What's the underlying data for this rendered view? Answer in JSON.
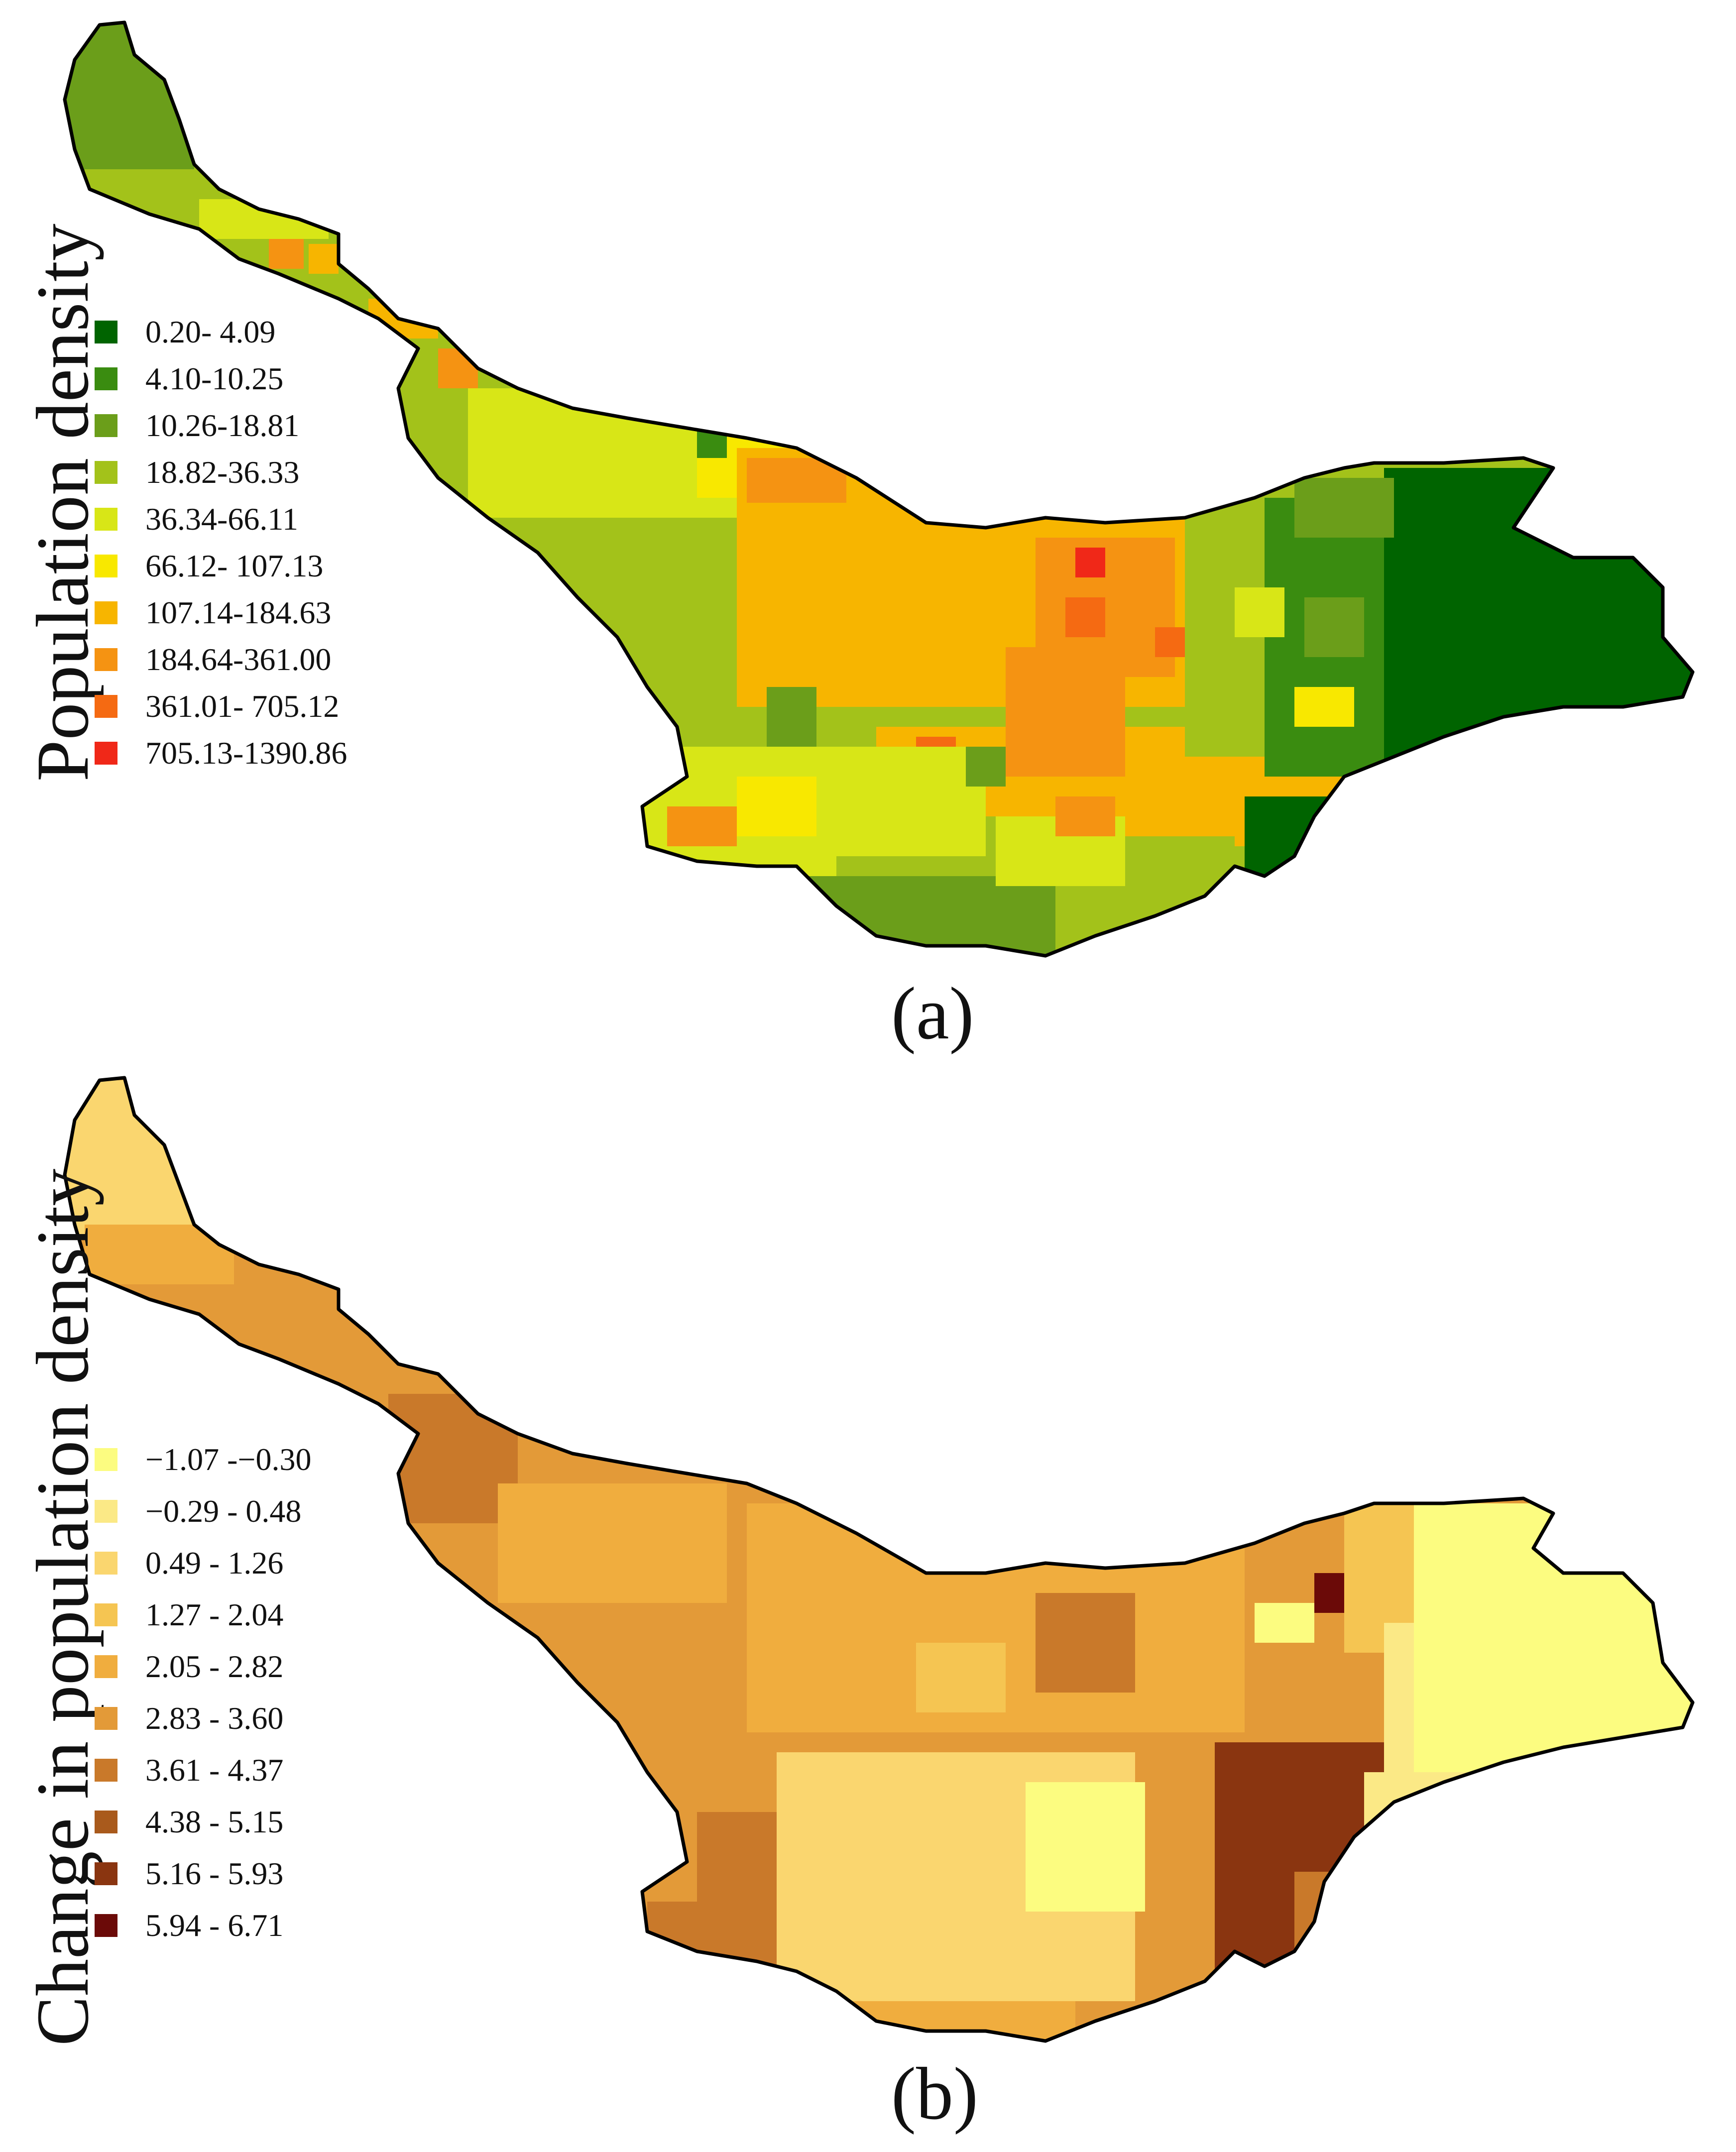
{
  "panels": [
    {
      "id": "a",
      "caption": "(a)",
      "legend_title": "Population density",
      "legend": [
        {
          "label": "0.20- 4.09",
          "color": "#006400"
        },
        {
          "label": "4.10-10.25",
          "color": "#3a8c10"
        },
        {
          "label": "10.26-18.81",
          "color": "#6b9e1a"
        },
        {
          "label": "18.82-36.33",
          "color": "#a3c21a"
        },
        {
          "label": "36.34-66.11",
          "color": "#d8e617"
        },
        {
          "label": "66.12- 107.13",
          "color": "#f8e800"
        },
        {
          "label": "107.14-184.63",
          "color": "#f7b500"
        },
        {
          "label": "184.64-361.00",
          "color": "#f59312"
        },
        {
          "label": "361.01- 705.12",
          "color": "#f56a12"
        },
        {
          "label": "705.13-1390.86",
          "color": "#f02818"
        }
      ]
    },
    {
      "id": "b",
      "caption": "(b)",
      "legend_title": "Change in population density",
      "legend": [
        {
          "label": "−1.07 -−0.30",
          "color": "#fcfc80"
        },
        {
          "label": "−0.29 - 0.48",
          "color": "#fbe986"
        },
        {
          "label": "0.49 - 1.26",
          "color": "#fad66f"
        },
        {
          "label": "1.27 - 2.04",
          "color": "#f5c552"
        },
        {
          "label": "2.05 - 2.82",
          "color": "#f0ad3e"
        },
        {
          "label": "2.83 - 3.60",
          "color": "#e39a38"
        },
        {
          "label": "3.61 - 4.37",
          "color": "#c9792a"
        },
        {
          "label": "4.38 - 5.15",
          "color": "#a95a1c"
        },
        {
          "label": "5.16 - 5.93",
          "color": "#8a3510"
        },
        {
          "label": "5.94 - 6.71",
          "color": "#6b0a08"
        }
      ]
    }
  ]
}
